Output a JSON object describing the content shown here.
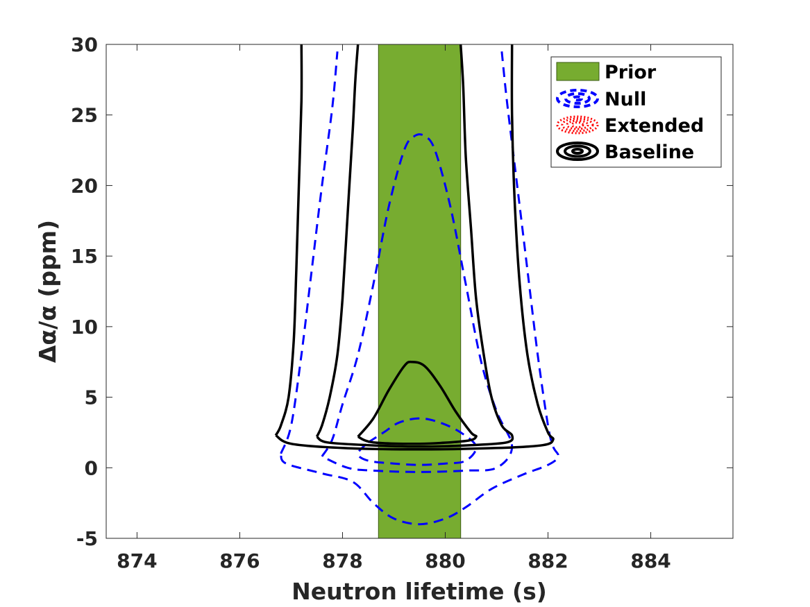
{
  "chart_data": {
    "type": "contour",
    "xlabel": "Neutron lifetime (s)",
    "ylabel": "Δα/α (ppm)",
    "xlim": [
      873.4,
      885.6
    ],
    "ylim": [
      -5,
      30
    ],
    "xticks": [
      "874",
      "876",
      "878",
      "880",
      "882",
      "884"
    ],
    "yticks": [
      "-5",
      "0",
      "5",
      "10",
      "15",
      "20",
      "25",
      "30"
    ],
    "xtick_values": [
      874,
      876,
      878,
      880,
      882,
      884
    ],
    "ytick_values": [
      -5,
      0,
      5,
      10,
      15,
      20,
      25,
      30
    ],
    "grid": false,
    "legend_position": "top-right",
    "prior_band": {
      "name": "Prior",
      "x_range": [
        878.7,
        880.3
      ],
      "color": "#77ac30"
    },
    "series": [
      {
        "name": "Null",
        "style": "dashed",
        "color": "#0000ff",
        "contours": [
          [
            [
              878.5,
              1.8
            ],
            [
              878.8,
              2.5
            ],
            [
              879.1,
              3.2
            ],
            [
              879.5,
              3.5
            ],
            [
              879.9,
              3.2
            ],
            [
              880.3,
              2.5
            ],
            [
              880.6,
              1.5
            ],
            [
              880.4,
              0.5
            ],
            [
              880.0,
              0.3
            ],
            [
              879.5,
              0.2
            ],
            [
              879.0,
              0.3
            ],
            [
              878.5,
              0.5
            ],
            [
              878.3,
              1.0
            ],
            [
              878.5,
              1.8
            ]
          ],
          [
            [
              877.6,
              0.8
            ],
            [
              877.8,
              2.0
            ],
            [
              878.0,
              4.5
            ],
            [
              878.3,
              8.0
            ],
            [
              878.6,
              13.0
            ],
            [
              878.9,
              18.5
            ],
            [
              879.2,
              22.5
            ],
            [
              879.4,
              23.5
            ],
            [
              879.6,
              23.5
            ],
            [
              879.8,
              22.5
            ],
            [
              880.1,
              18.5
            ],
            [
              880.4,
              13.0
            ],
            [
              880.7,
              7.5
            ],
            [
              881.0,
              4.0
            ],
            [
              881.3,
              1.5
            ],
            [
              881.0,
              0.0
            ],
            [
              880.4,
              -0.2
            ],
            [
              879.5,
              -0.3
            ],
            [
              878.6,
              -0.2
            ],
            [
              878.1,
              0.0
            ],
            [
              877.6,
              0.8
            ]
          ],
          [
            [
              876.8,
              1.0
            ],
            [
              877.0,
              3.0
            ],
            [
              877.2,
              8.0
            ],
            [
              877.4,
              14.0
            ],
            [
              877.6,
              20.0
            ],
            [
              877.8,
              25.5
            ],
            [
              877.9,
              29.5
            ]
          ],
          [
            [
              881.1,
              29.5
            ],
            [
              881.2,
              26.0
            ],
            [
              881.4,
              20.0
            ],
            [
              881.6,
              14.0
            ],
            [
              881.8,
              8.0
            ],
            [
              882.0,
              3.0
            ],
            [
              882.1,
              1.5
            ],
            [
              882.2,
              0.8
            ],
            [
              882.0,
              0.2
            ],
            [
              881.5,
              -0.5
            ],
            [
              880.9,
              -1.5
            ],
            [
              880.4,
              -2.8
            ],
            [
              880.0,
              -3.6
            ],
            [
              879.5,
              -4.0
            ],
            [
              879.0,
              -3.6
            ],
            [
              878.6,
              -2.5
            ],
            [
              878.2,
              -1.0
            ],
            [
              877.6,
              -0.4
            ],
            [
              876.9,
              0.3
            ],
            [
              876.8,
              1.0
            ]
          ]
        ]
      },
      {
        "name": "Extended",
        "style": "dotted",
        "color": "#ff0000",
        "contours": []
      },
      {
        "name": "Baseline",
        "style": "solid",
        "color": "#000000",
        "contours": [
          [
            [
              878.3,
              2.2
            ],
            [
              878.6,
              3.5
            ],
            [
              878.9,
              5.5
            ],
            [
              879.2,
              7.2
            ],
            [
              879.35,
              7.5
            ],
            [
              879.6,
              7.2
            ],
            [
              879.9,
              5.8
            ],
            [
              880.2,
              4.0
            ],
            [
              880.5,
              2.5
            ],
            [
              880.6,
              2.2
            ],
            [
              880.4,
              1.9
            ],
            [
              879.5,
              1.7
            ],
            [
              878.6,
              1.8
            ],
            [
              878.3,
              2.2
            ]
          ],
          [
            [
              877.5,
              2.2
            ],
            [
              877.6,
              3.0
            ],
            [
              877.75,
              5.0
            ],
            [
              877.9,
              8.0
            ],
            [
              878.0,
              12.0
            ],
            [
              878.1,
              18.0
            ],
            [
              878.2,
              24.0
            ],
            [
              878.25,
              27.5
            ],
            [
              878.3,
              30.0
            ]
          ],
          [
            [
              880.3,
              30.0
            ],
            [
              880.35,
              27.0
            ],
            [
              880.4,
              22.0
            ],
            [
              880.5,
              17.0
            ],
            [
              880.6,
              12.0
            ],
            [
              880.75,
              8.0
            ],
            [
              880.9,
              5.0
            ],
            [
              881.1,
              3.0
            ],
            [
              881.3,
              2.3
            ],
            [
              881.2,
              1.8
            ],
            [
              880.5,
              1.6
            ],
            [
              879.5,
              1.5
            ],
            [
              878.5,
              1.6
            ],
            [
              877.7,
              1.8
            ],
            [
              877.5,
              2.2
            ]
          ],
          [
            [
              876.7,
              2.3
            ],
            [
              876.8,
              3.0
            ],
            [
              876.95,
              5.0
            ],
            [
              877.05,
              9.0
            ],
            [
              877.1,
              14.0
            ],
            [
              877.15,
              20.0
            ],
            [
              877.2,
              26.0
            ],
            [
              877.2,
              30.0
            ]
          ],
          [
            [
              881.3,
              30.0
            ],
            [
              881.3,
              25.0
            ],
            [
              881.35,
              19.0
            ],
            [
              881.45,
              13.0
            ],
            [
              881.6,
              8.0
            ],
            [
              881.8,
              4.5
            ],
            [
              882.0,
              2.5
            ],
            [
              882.1,
              2.0
            ],
            [
              881.9,
              1.6
            ],
            [
              881.0,
              1.4
            ],
            [
              879.5,
              1.3
            ],
            [
              878.0,
              1.4
            ],
            [
              877.0,
              1.7
            ],
            [
              876.7,
              2.3
            ]
          ]
        ]
      }
    ],
    "legend": [
      "Prior",
      "Null",
      "Extended",
      "Baseline"
    ]
  }
}
